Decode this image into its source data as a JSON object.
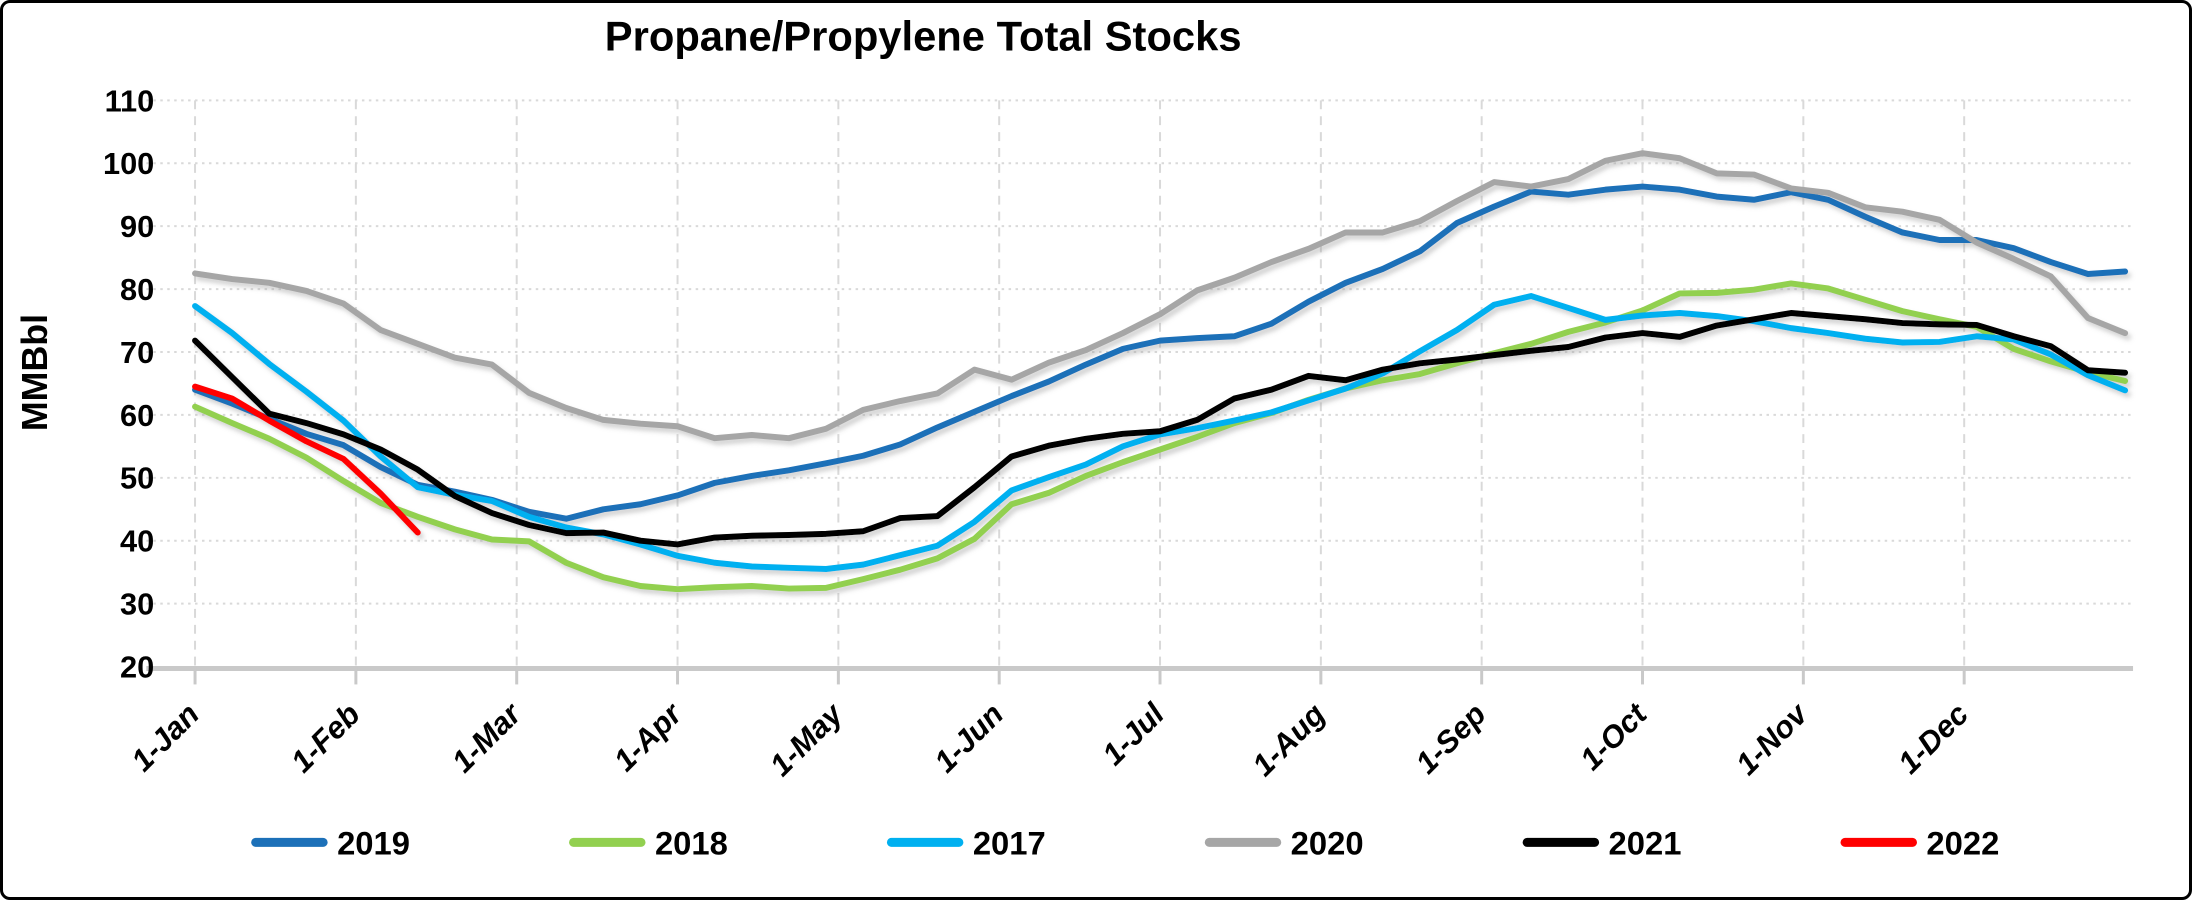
{
  "chart_data": {
    "type": "line",
    "title": "Propane/Propylene Total Stocks",
    "ylabel": "MMBbl",
    "ylim": [
      20,
      110
    ],
    "ytick_step": 10,
    "ytick_labels": [
      "20",
      "30",
      "40",
      "50",
      "60",
      "70",
      "80",
      "90",
      "100",
      "110"
    ],
    "xtick_labels": [
      "1-Jan",
      "1-Feb",
      "1-Mar",
      "1-Apr",
      "1-May",
      "1-Jun",
      "1-Jul",
      "1-Aug",
      "1-Sep",
      "1-Oct",
      "1-Nov",
      "1-Dec"
    ],
    "x_unit": "weekly data, Jan 1 through Dec 31",
    "grid": true,
    "legend_position": "bottom",
    "grid_color": "#D9D9D9",
    "axis_color": "#C9C9C9",
    "series": [
      {
        "name": "2019",
        "color": "#1C70B8",
        "values": [
          64.0,
          61.8,
          59.4,
          57.0,
          55.2,
          51.7,
          48.9,
          47.8,
          46.5,
          44.6,
          43.5,
          45.0,
          45.8,
          47.2,
          49.2,
          50.3,
          51.2,
          52.3,
          53.5,
          55.3,
          58.0,
          60.5,
          63.0,
          65.3,
          68.0,
          70.5,
          71.8,
          72.2,
          72.5,
          74.5,
          78.0,
          81.0,
          83.2,
          86.0,
          90.5,
          93.1,
          95.5,
          95.0,
          95.8,
          96.3,
          95.8,
          94.7,
          94.2,
          95.4,
          94.2,
          91.5,
          89.0,
          87.8,
          87.8,
          86.5,
          84.3,
          82.4,
          82.8
        ]
      },
      {
        "name": "2018",
        "color": "#92D050",
        "values": [
          61.3,
          58.7,
          56.2,
          53.2,
          49.5,
          46.0,
          43.8,
          41.8,
          40.2,
          39.9,
          36.5,
          34.2,
          32.8,
          32.3,
          32.6,
          32.8,
          32.4,
          32.5,
          33.9,
          35.4,
          37.2,
          40.3,
          45.8,
          47.6,
          50.3,
          52.5,
          54.5,
          56.5,
          58.7,
          60.3,
          62.4,
          64.2,
          65.5,
          66.5,
          68.2,
          69.8,
          71.3,
          73.2,
          74.7,
          76.6,
          79.3,
          79.4,
          79.9,
          80.9,
          80.1,
          78.3,
          76.5,
          75.2,
          74.0,
          70.5,
          68.5,
          66.8,
          65.4
        ]
      },
      {
        "name": "2017",
        "color": "#00B0F0",
        "values": [
          77.3,
          73.0,
          68.1,
          63.7,
          59.1,
          53.4,
          48.5,
          47.3,
          46.3,
          43.8,
          42.1,
          41.0,
          39.4,
          37.6,
          36.5,
          35.9,
          35.7,
          35.5,
          36.2,
          37.7,
          39.2,
          43.0,
          48.0,
          50.1,
          52.1,
          55.0,
          56.9,
          57.9,
          59.1,
          60.4,
          62.3,
          64.2,
          66.6,
          70.1,
          73.5,
          77.5,
          78.9,
          77.0,
          75.1,
          75.8,
          76.2,
          75.7,
          74.9,
          73.8,
          73.0,
          72.1,
          71.5,
          71.6,
          72.5,
          72.0,
          69.6,
          66.3,
          63.9
        ]
      },
      {
        "name": "2020",
        "color": "#A6A6A6",
        "values": [
          82.5,
          81.6,
          81.0,
          79.7,
          77.7,
          73.5,
          71.3,
          69.1,
          68.0,
          63.5,
          61.1,
          59.2,
          58.6,
          58.2,
          56.3,
          56.8,
          56.3,
          57.8,
          60.8,
          62.2,
          63.4,
          67.2,
          65.6,
          68.3,
          70.3,
          73.0,
          76.0,
          79.8,
          81.8,
          84.3,
          86.4,
          89.0,
          89.0,
          90.8,
          94.0,
          97.0,
          96.3,
          97.5,
          100.4,
          101.6,
          100.8,
          98.4,
          98.2,
          96.0,
          95.3,
          93.0,
          92.3,
          91.0,
          87.4,
          84.8,
          82.0,
          75.4,
          73.0
        ]
      },
      {
        "name": "2021",
        "color": "#000000",
        "values": [
          71.8,
          66.0,
          60.2,
          58.7,
          56.9,
          54.5,
          51.3,
          47.1,
          44.4,
          42.5,
          41.2,
          41.3,
          40.0,
          39.4,
          40.5,
          40.8,
          40.9,
          41.1,
          41.5,
          43.6,
          43.9,
          48.5,
          53.4,
          55.1,
          56.2,
          57.0,
          57.4,
          59.2,
          62.6,
          64.0,
          66.2,
          65.5,
          67.2,
          68.2,
          68.8,
          69.5,
          70.2,
          70.8,
          72.3,
          73.0,
          72.4,
          74.2,
          75.2,
          76.2,
          75.7,
          75.2,
          74.6,
          74.4,
          74.3,
          72.5,
          70.9,
          67.1,
          66.7
        ]
      },
      {
        "name": "2022",
        "color": "#FF0000",
        "values": [
          64.5,
          62.6,
          59.1,
          55.8,
          53.0,
          47.5,
          41.3
        ]
      }
    ]
  }
}
